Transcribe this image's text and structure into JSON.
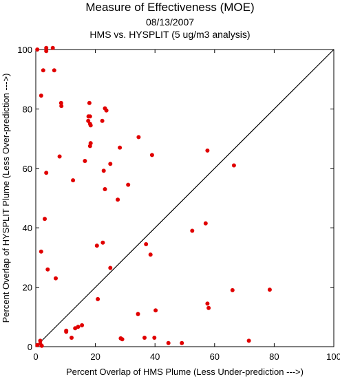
{
  "chart_data": {
    "type": "scatter",
    "title": "Measure of Effectiveness (MOE)",
    "subtitle": "08/13/2007",
    "subtitle2": "HMS vs. HYSPLIT  (5 ug/m3 analysis)",
    "xlabel": "Percent Overlap of HMS Plume (Less Under-prediction --->)",
    "ylabel": "Percent Overlap of HYSPLIT Plume (Less Over-prediction --->)",
    "xlim": [
      0,
      100
    ],
    "ylim": [
      0,
      100
    ],
    "xticks": [
      0,
      20,
      40,
      60,
      80,
      100
    ],
    "yticks": [
      0,
      20,
      40,
      60,
      80,
      100
    ],
    "grid": false,
    "diagonal": true,
    "point_color": "#e00000",
    "points": [
      [
        0.5,
        100
      ],
      [
        3.5,
        99.5
      ],
      [
        3.5,
        100.5
      ],
      [
        5.7,
        100.5
      ],
      [
        2.5,
        93
      ],
      [
        6.2,
        93
      ],
      [
        1.8,
        84.5
      ],
      [
        8.5,
        82
      ],
      [
        8.6,
        81
      ],
      [
        18,
        82
      ],
      [
        23.2,
        80.2
      ],
      [
        23.7,
        79.5
      ],
      [
        17.7,
        77.5
      ],
      [
        18.2,
        77.5
      ],
      [
        17.6,
        76
      ],
      [
        22.3,
        76
      ],
      [
        18.2,
        75
      ],
      [
        18.4,
        74.5
      ],
      [
        34.5,
        70.5
      ],
      [
        18.4,
        68.5
      ],
      [
        18.2,
        67.5
      ],
      [
        28.2,
        67
      ],
      [
        57.6,
        66
      ],
      [
        39,
        64.5
      ],
      [
        8,
        64
      ],
      [
        16.5,
        62.5
      ],
      [
        25,
        61.5
      ],
      [
        66.5,
        61
      ],
      [
        3.5,
        58.5
      ],
      [
        22.8,
        59.2
      ],
      [
        12.5,
        56
      ],
      [
        31,
        54.5
      ],
      [
        23.2,
        53
      ],
      [
        27.5,
        49.5
      ],
      [
        3,
        43
      ],
      [
        57,
        41.5
      ],
      [
        52.5,
        39
      ],
      [
        22.5,
        35
      ],
      [
        20.5,
        34
      ],
      [
        37,
        34.5
      ],
      [
        1.8,
        32
      ],
      [
        38.5,
        31
      ],
      [
        4,
        26
      ],
      [
        25,
        26.5
      ],
      [
        6.7,
        23
      ],
      [
        78.5,
        19.2
      ],
      [
        66,
        19
      ],
      [
        20.8,
        16
      ],
      [
        57.6,
        14.5
      ],
      [
        58,
        13
      ],
      [
        40.2,
        12.2
      ],
      [
        34.3,
        11
      ],
      [
        15.5,
        7.2
      ],
      [
        14.2,
        6.7
      ],
      [
        13.2,
        6.2
      ],
      [
        10.2,
        5
      ],
      [
        10.2,
        5.4
      ],
      [
        12,
        3
      ],
      [
        28.5,
        2.8
      ],
      [
        29,
        2.5
      ],
      [
        36.5,
        3
      ],
      [
        39.8,
        3
      ],
      [
        44.5,
        1.2
      ],
      [
        49,
        1.2
      ],
      [
        71.5,
        2
      ],
      [
        1.5,
        2
      ],
      [
        1.5,
        1
      ],
      [
        0.5,
        0.5
      ],
      [
        2,
        0.3
      ]
    ]
  }
}
